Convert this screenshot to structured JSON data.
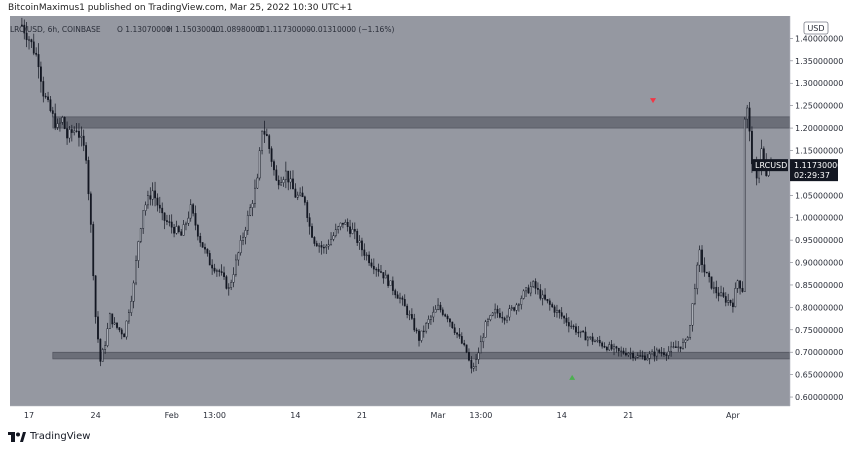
{
  "header": {
    "publisher": "BitcoinMaximus1 published on TradingView.com, Mar 25, 2022 10:30 UTC+1"
  },
  "legend": {
    "symbol": "LRC/USD, 6h, COINBASE",
    "open": "O 1.13070000",
    "high": "H 1.15030000",
    "low": "L 1.08980000",
    "close": "C 1.11730000",
    "change": "-0.01310000 (−1.16%)"
  },
  "price_label": {
    "symbol": "LRCUSD",
    "price": "1.11730000",
    "countdown": "02:29:37"
  },
  "currency": "USD",
  "footer": {
    "brand": "TradingView"
  },
  "colors": {
    "background": "#9598a1",
    "candle": "#131722",
    "zone": "#5d606b",
    "marker_down": "#f23645",
    "marker_up": "#4caf50"
  },
  "chart_data": {
    "type": "candlestick",
    "ylim": [
      0.58,
      1.45
    ],
    "y_ticks": [
      {
        "v": 1.4,
        "label": "1.40000000"
      },
      {
        "v": 1.35,
        "label": "1.35000000"
      },
      {
        "v": 1.3,
        "label": "1.30000000"
      },
      {
        "v": 1.25,
        "label": "1.25000000"
      },
      {
        "v": 1.2,
        "label": "1.20000000"
      },
      {
        "v": 1.15,
        "label": "1.15000000"
      },
      {
        "v": 1.05,
        "label": "1.05000000"
      },
      {
        "v": 1.0,
        "label": "1.00000000"
      },
      {
        "v": 0.95,
        "label": "0.95000000"
      },
      {
        "v": 0.9,
        "label": "0.90000000"
      },
      {
        "v": 0.85,
        "label": "0.85000000"
      },
      {
        "v": 0.8,
        "label": "0.80000000"
      },
      {
        "v": 0.75,
        "label": "0.75000000"
      },
      {
        "v": 0.7,
        "label": "0.70000000"
      },
      {
        "v": 0.65,
        "label": "0.65000000"
      },
      {
        "v": 0.6,
        "label": "0.60000000"
      }
    ],
    "x_ticks": [
      {
        "day": 0,
        "label": "17"
      },
      {
        "day": 7,
        "label": "24"
      },
      {
        "day": 15,
        "label": "Feb"
      },
      {
        "day": 19.5,
        "label": "13:00"
      },
      {
        "day": 28,
        "label": "14"
      },
      {
        "day": 35,
        "label": "21"
      },
      {
        "day": 43,
        "label": "Mar"
      },
      {
        "day": 47.5,
        "label": "13:00"
      },
      {
        "day": 56,
        "label": "14"
      },
      {
        "day": 63,
        "label": "21"
      },
      {
        "day": 74,
        "label": "Apr"
      }
    ],
    "zones": [
      {
        "low": 1.2,
        "high": 1.225
      },
      {
        "low": 0.685,
        "high": 0.7
      }
    ],
    "markers": [
      {
        "type": "down",
        "day": 65.6,
        "price": 1.26
      },
      {
        "type": "up",
        "day": 57.1,
        "price": 0.645
      }
    ],
    "path": [
      [
        -2.0,
        1.46
      ],
      [
        -1.0,
        1.44
      ],
      [
        0.0,
        1.4
      ],
      [
        1.0,
        1.35
      ],
      [
        1.5,
        1.28
      ],
      [
        2.0,
        1.25
      ],
      [
        3.0,
        1.2
      ],
      [
        3.5,
        1.22
      ],
      [
        4.0,
        1.18
      ],
      [
        5.0,
        1.2
      ],
      [
        6.0,
        1.14
      ],
      [
        6.5,
        0.98
      ],
      [
        7.0,
        0.78
      ],
      [
        7.5,
        0.68
      ],
      [
        8.0,
        0.72
      ],
      [
        8.5,
        0.78
      ],
      [
        9.0,
        0.76
      ],
      [
        10.0,
        0.74
      ],
      [
        11.0,
        0.85
      ],
      [
        11.5,
        0.95
      ],
      [
        12.0,
        1.02
      ],
      [
        13.0,
        1.06
      ],
      [
        14.0,
        1.0
      ],
      [
        15.0,
        0.98
      ],
      [
        16.0,
        0.96
      ],
      [
        17.0,
        1.02
      ],
      [
        18.0,
        0.95
      ],
      [
        19.0,
        0.9
      ],
      [
        20.0,
        0.88
      ],
      [
        21.0,
        0.84
      ],
      [
        22.0,
        0.92
      ],
      [
        23.0,
        1.0
      ],
      [
        24.0,
        1.08
      ],
      [
        24.5,
        1.2
      ],
      [
        25.0,
        1.18
      ],
      [
        26.0,
        1.08
      ],
      [
        27.0,
        1.1
      ],
      [
        28.0,
        1.05
      ],
      [
        29.0,
        1.04
      ],
      [
        29.5,
        0.98
      ],
      [
        30.0,
        0.95
      ],
      [
        31.0,
        0.93
      ],
      [
        32.0,
        0.96
      ],
      [
        33.0,
        0.99
      ],
      [
        34.0,
        0.97
      ],
      [
        35.0,
        0.93
      ],
      [
        36.0,
        0.9
      ],
      [
        37.0,
        0.88
      ],
      [
        38.0,
        0.85
      ],
      [
        39.0,
        0.82
      ],
      [
        40.0,
        0.78
      ],
      [
        41.0,
        0.73
      ],
      [
        42.0,
        0.77
      ],
      [
        43.0,
        0.8
      ],
      [
        44.0,
        0.78
      ],
      [
        45.0,
        0.74
      ],
      [
        46.0,
        0.7
      ],
      [
        46.5,
        0.66
      ],
      [
        47.0,
        0.68
      ],
      [
        48.0,
        0.76
      ],
      [
        49.0,
        0.79
      ],
      [
        50.0,
        0.78
      ],
      [
        51.0,
        0.8
      ],
      [
        52.0,
        0.83
      ],
      [
        53.0,
        0.85
      ],
      [
        54.0,
        0.82
      ],
      [
        55.0,
        0.8
      ],
      [
        56.0,
        0.78
      ],
      [
        57.0,
        0.76
      ],
      [
        58.0,
        0.74
      ],
      [
        59.0,
        0.73
      ],
      [
        60.0,
        0.72
      ],
      [
        61.0,
        0.71
      ],
      [
        62.0,
        0.7
      ],
      [
        63.0,
        0.7
      ],
      [
        64.0,
        0.69
      ],
      [
        65.0,
        0.69
      ],
      [
        66.0,
        0.7
      ],
      [
        67.0,
        0.7
      ],
      [
        68.0,
        0.71
      ],
      [
        69.0,
        0.72
      ],
      [
        69.5,
        0.76
      ],
      [
        70.0,
        0.85
      ],
      [
        70.5,
        0.92
      ],
      [
        71.0,
        0.88
      ],
      [
        72.0,
        0.84
      ],
      [
        73.0,
        0.82
      ],
      [
        74.0,
        0.81
      ],
      [
        74.5,
        0.86
      ],
      [
        75.0,
        0.84
      ],
      [
        75.2,
        1.22
      ],
      [
        75.5,
        1.24
      ],
      [
        76.0,
        1.13
      ],
      [
        76.5,
        1.08
      ],
      [
        77.0,
        1.16
      ],
      [
        77.5,
        1.09
      ],
      [
        78.0,
        1.12
      ]
    ]
  }
}
